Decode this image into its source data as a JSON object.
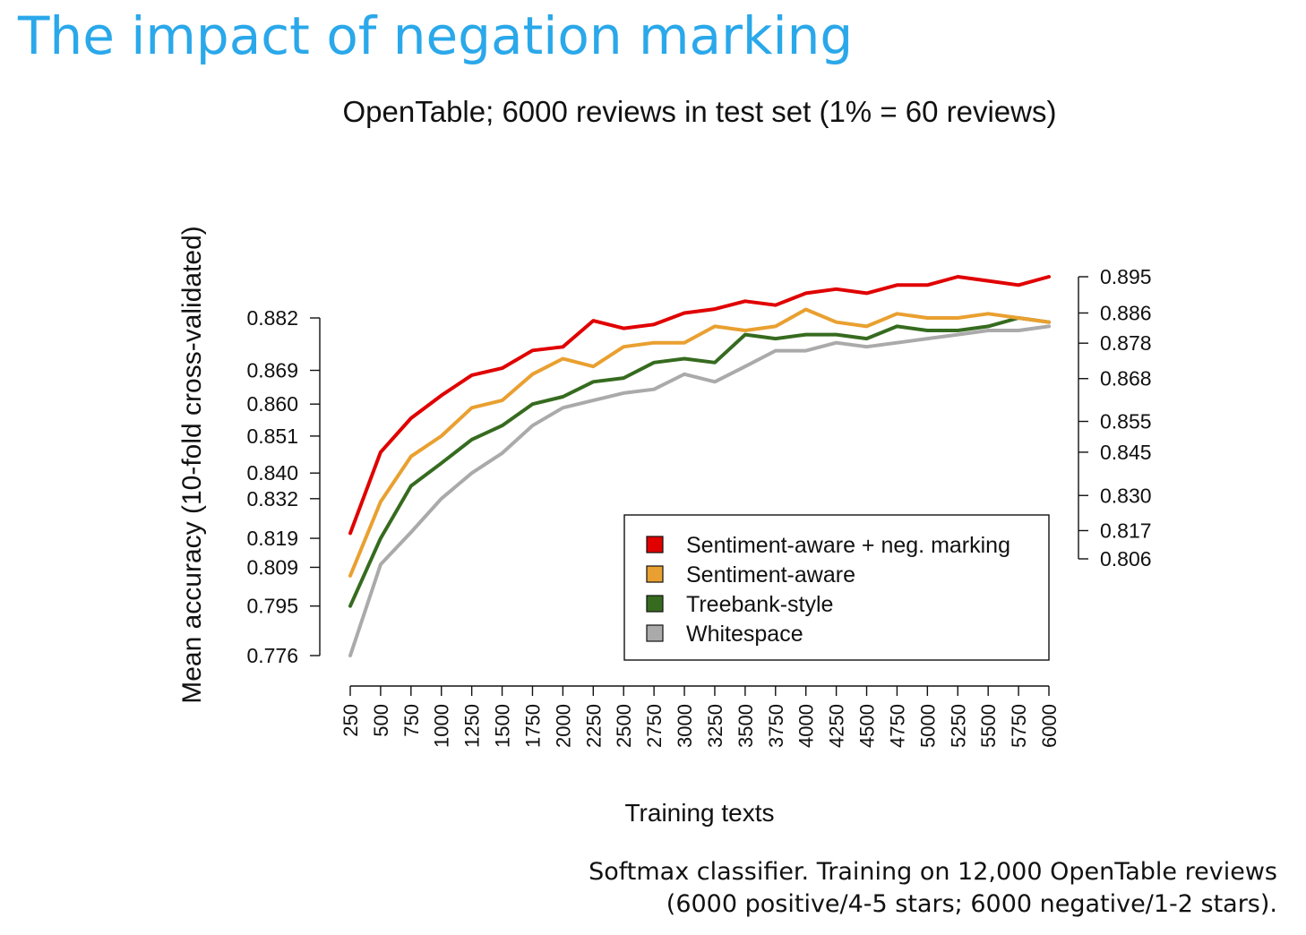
{
  "slide": {
    "title": "The impact of negation marking",
    "caption_line1": "Softmax classifier. Training on 12,000 OpenTable reviews",
    "caption_line2": "(6000 positive/4-5 stars; 6000 negative/1-2 stars)."
  },
  "chart_data": {
    "type": "line",
    "title": "OpenTable; 6000 reviews in test set (1% = 60 reviews)",
    "xlabel": "Training texts",
    "ylabel": "Mean accuracy (10-fold cross-validated)",
    "x": [
      250,
      500,
      750,
      1000,
      1250,
      1500,
      1750,
      2000,
      2250,
      2500,
      2750,
      3000,
      3250,
      3500,
      3750,
      4000,
      4250,
      4500,
      4750,
      5000,
      5250,
      5500,
      5750,
      6000
    ],
    "left_axis": {
      "ticks": [
        "0.882",
        "0.869",
        "0.860",
        "0.851",
        "0.840",
        "0.832",
        "0.819",
        "0.809",
        "0.795",
        "0.776"
      ],
      "ylim": [
        0.776,
        0.882
      ]
    },
    "right_axis": {
      "ticks": [
        "0.895",
        "0.886",
        "0.878",
        "0.868",
        "0.855",
        "0.845",
        "0.830",
        "0.817",
        "0.806"
      ],
      "ylim": [
        0.806,
        0.895
      ]
    },
    "series": [
      {
        "name": "Sentiment-aware + neg. marking",
        "color": "#e00000",
        "axis": "right",
        "values": [
          0.816,
          0.845,
          0.856,
          0.863,
          0.869,
          0.871,
          0.876,
          0.877,
          0.884,
          0.882,
          0.883,
          0.886,
          0.887,
          0.889,
          0.888,
          0.891,
          0.892,
          0.891,
          0.893,
          0.893,
          0.895,
          0.894,
          0.893,
          0.895
        ]
      },
      {
        "name": "Sentiment-aware",
        "color": "#e9a030",
        "axis": "left",
        "values": [
          0.806,
          0.831,
          0.845,
          0.851,
          0.859,
          0.861,
          0.868,
          0.872,
          0.87,
          0.875,
          0.876,
          0.876,
          0.88,
          0.879,
          0.88,
          0.884,
          0.881,
          0.88,
          0.883,
          0.882,
          0.882,
          0.883,
          0.882,
          0.881
        ]
      },
      {
        "name": "Treebank-style",
        "color": "#366b1f",
        "axis": "left",
        "values": [
          0.795,
          0.819,
          0.836,
          0.843,
          0.85,
          0.854,
          0.86,
          0.862,
          0.866,
          0.867,
          0.871,
          0.872,
          0.871,
          0.878,
          0.877,
          0.878,
          0.878,
          0.877,
          0.88,
          0.879,
          0.879,
          0.88,
          0.882,
          0.881
        ]
      },
      {
        "name": "Whitespace",
        "color": "#aaaaaa",
        "axis": "left",
        "values": [
          0.776,
          0.81,
          0.821,
          0.832,
          0.84,
          0.846,
          0.854,
          0.859,
          0.861,
          0.863,
          0.864,
          0.868,
          0.866,
          0.87,
          0.874,
          0.874,
          0.876,
          0.875,
          0.876,
          0.877,
          0.878,
          0.879,
          0.879,
          0.88
        ]
      }
    ],
    "legend_position": "bottom-right",
    "grid": false
  }
}
